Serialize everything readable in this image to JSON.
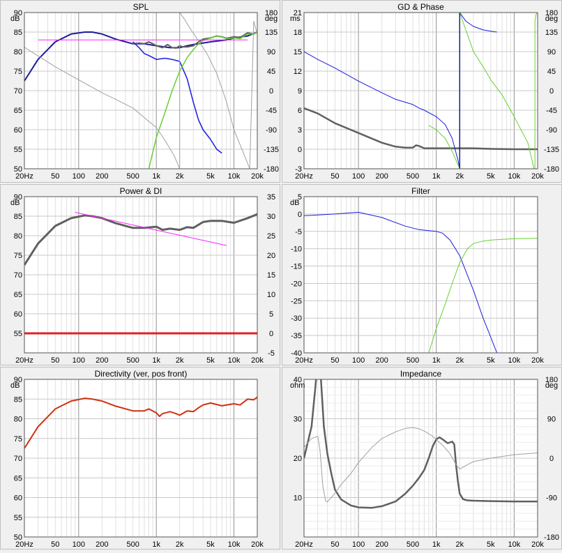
{
  "colors": {
    "background": "#f0f0f0",
    "plot_bg": "#ffffff",
    "grid": "#c8c8c8",
    "frame": "#555555",
    "blue": "#1a1ae0",
    "navy": "#1c1c9c",
    "green": "#66d030",
    "gray_dark": "#606060",
    "gray_light": "#a0a0a0",
    "magenta": "#ff20ff",
    "red": "#e02020",
    "orange_red": "#d03010"
  },
  "chart_data": [
    {
      "id": "spl",
      "type": "line",
      "title": "SPL",
      "x_scale": "log",
      "xlim": [
        20,
        20000
      ],
      "x_ticks": [
        "20Hz",
        "50",
        "100",
        "200",
        "500",
        "1k",
        "2k",
        "5k",
        "10k",
        "20k"
      ],
      "ylim": [
        50,
        90
      ],
      "y_ticks": [
        "50",
        "55",
        "60",
        "65",
        "70",
        "75",
        "80",
        "85",
        "90"
      ],
      "ylabel": "dB",
      "y2lim": [
        -180,
        180
      ],
      "y2_ticks": [
        "-180",
        "-135",
        "-90",
        "-45",
        "0",
        "45",
        "90",
        "135",
        "180"
      ],
      "y2label": "deg",
      "grid": true,
      "series": [
        {
          "color": "navy",
          "width": 2,
          "axis": "left",
          "x": [
            20,
            30,
            50,
            80,
            120,
            150,
            200,
            300,
            500,
            700,
            1000,
            1500,
            2000,
            2500,
            3000,
            5000,
            8000,
            10000,
            15000,
            20000
          ],
          "y": [
            72.5,
            78,
            82.5,
            84.5,
            85,
            85,
            84.5,
            83.2,
            82,
            82,
            81.5,
            81,
            81,
            81.5,
            81.8,
            82.5,
            83,
            83.5,
            84,
            85
          ]
        },
        {
          "color": "gray_dark",
          "width": 2,
          "axis": "left",
          "x": [
            500,
            600,
            700,
            800,
            900,
            1000,
            1200,
            1400,
            1600,
            1800,
            2000,
            2200,
            2500,
            3000,
            3500,
            4000,
            5000,
            6000,
            7000,
            8000,
            10000,
            12000,
            15000,
            18000,
            20000
          ],
          "y": [
            82,
            82.2,
            82,
            82.5,
            82,
            81.5,
            81,
            81.8,
            81,
            80.9,
            81.5,
            81.2,
            81.2,
            81.5,
            82.5,
            83.2,
            83.5,
            84,
            83.8,
            83.4,
            83.8,
            83.6,
            84.8,
            84.5,
            85
          ]
        },
        {
          "color": "blue",
          "width": 1.5,
          "axis": "left",
          "x": [
            500,
            600,
            700,
            800,
            1000,
            1300,
            1600,
            2000,
            2500,
            3000,
            3500,
            4000,
            5000,
            6000,
            7000
          ],
          "y": [
            82.5,
            81,
            79.5,
            79,
            78,
            78.3,
            78,
            77.5,
            73,
            67,
            62.5,
            60,
            57.5,
            55,
            54
          ]
        },
        {
          "color": "green",
          "width": 1.5,
          "axis": "left",
          "x": [
            800,
            1000,
            1300,
            1600,
            2000,
            2500,
            3000,
            3500,
            4000,
            5000,
            6000,
            7000,
            8000,
            10000,
            12000,
            15000,
            18000,
            20000
          ],
          "y": [
            50,
            58,
            64.5,
            70,
            75,
            78.5,
            80.5,
            82,
            82.8,
            83.5,
            84,
            83.8,
            83.3,
            83.5,
            83.3,
            84.5,
            84.5,
            85
          ]
        },
        {
          "color": "magenta",
          "width": 1,
          "axis": "left",
          "x": [
            30,
            15000
          ],
          "y": [
            83,
            83
          ]
        },
        {
          "color": "gray_light",
          "width": 1,
          "axis": "right",
          "x": [
            20,
            50,
            100,
            200,
            300,
            500,
            700,
            1000,
            1300,
            1700,
            2000,
            2000,
            2300,
            2800,
            3500,
            4500,
            6000,
            8000,
            10000,
            13000,
            16000,
            18000,
            20000
          ],
          "y": [
            100,
            55,
            25,
            -5,
            -20,
            -40,
            -62,
            -85,
            -115,
            -150,
            -180,
            180,
            165,
            140,
            115,
            85,
            40,
            -25,
            -90,
            -140,
            -180,
            160,
            130
          ]
        }
      ]
    },
    {
      "id": "gd_phase",
      "type": "line",
      "title": "GD & Phase",
      "x_scale": "log",
      "xlim": [
        20,
        20000
      ],
      "x_ticks": [
        "20Hz",
        "50",
        "100",
        "200",
        "500",
        "1k",
        "2k",
        "5k",
        "10k",
        "20k"
      ],
      "ylim": [
        -3,
        21
      ],
      "y_ticks": [
        "-3",
        "0",
        "3",
        "6",
        "9",
        "12",
        "15",
        "18",
        "21"
      ],
      "ylabel": "ms",
      "y2lim": [
        -180,
        180
      ],
      "y2_ticks": [
        "-180",
        "-135",
        "-90",
        "-45",
        "0",
        "45",
        "90",
        "135",
        "180"
      ],
      "y2label": "deg",
      "grid": true,
      "series": [
        {
          "color": "gray_dark",
          "width": 2.5,
          "axis": "left",
          "x": [
            20,
            30,
            50,
            100,
            200,
            300,
            400,
            500,
            550,
            600,
            700,
            1000,
            2000,
            3000,
            5000,
            10000,
            20000
          ],
          "y": [
            6.3,
            5.5,
            4,
            2.5,
            1,
            0.4,
            0.25,
            0.25,
            0.6,
            0.5,
            0.15,
            0.15,
            0.15,
            0.15,
            0.05,
            0,
            0
          ]
        },
        {
          "color": "blue",
          "width": 1,
          "axis": "right",
          "x": [
            20,
            30,
            50,
            100,
            200,
            300,
            500,
            600,
            700,
            1000,
            1300,
            1600,
            1900,
            2000,
            2000,
            2400,
            3000,
            4000,
            5000,
            6000
          ],
          "y": [
            90,
            72,
            52,
            22,
            -5,
            -20,
            -32,
            -40,
            -45,
            -60,
            -78,
            -110,
            -160,
            -180,
            180,
            160,
            148,
            140,
            137,
            135
          ]
        },
        {
          "color": "green",
          "width": 1,
          "axis": "right",
          "x": [
            800,
            1000,
            1300,
            1600,
            2000,
            2000,
            2500,
            3000,
            4000,
            5000,
            7000,
            10000,
            15000,
            18000,
            18500,
            18500,
            19000,
            20000
          ],
          "y": [
            -80,
            -90,
            -110,
            -140,
            -180,
            180,
            130,
            90,
            55,
            25,
            -10,
            -60,
            -120,
            -180,
            -180,
            160,
            175,
            180
          ]
        },
        {
          "color": "navy",
          "width": 1.5,
          "axis": "right",
          "x": [
            2000,
            2000
          ],
          "y": [
            -180,
            180
          ]
        }
      ]
    },
    {
      "id": "power_di",
      "type": "line",
      "title": "Power & DI",
      "x_scale": "log",
      "xlim": [
        20,
        20000
      ],
      "x_ticks": [
        "20Hz",
        "50",
        "100",
        "200",
        "500",
        "1k",
        "2k",
        "5k",
        "10k",
        "20k"
      ],
      "ylim": [
        50,
        90
      ],
      "y_ticks": [
        "55",
        "60",
        "65",
        "70",
        "75",
        "80",
        "85",
        "90"
      ],
      "ylabel": "dB",
      "y2lim": [
        -5,
        35
      ],
      "y2_ticks": [
        "-5",
        "0",
        "5",
        "10",
        "15",
        "20",
        "25",
        "30",
        "35"
      ],
      "grid": true,
      "series": [
        {
          "color": "gray_dark",
          "width": 3,
          "axis": "left",
          "x": [
            20,
            30,
            50,
            80,
            120,
            150,
            200,
            300,
            500,
            700,
            1000,
            1200,
            1500,
            2000,
            2500,
            3000,
            4000,
            5000,
            7000,
            10000,
            15000,
            20000
          ],
          "y": [
            72.5,
            78,
            82.5,
            84.5,
            85.2,
            85,
            84.5,
            83.2,
            82,
            82,
            82.3,
            81.5,
            81.8,
            81.5,
            82.2,
            82,
            83.5,
            83.8,
            83.8,
            83.3,
            84.5,
            85.5
          ]
        },
        {
          "color": "magenta",
          "width": 1,
          "axis": "left",
          "x": [
            90,
            8000
          ],
          "y": [
            86,
            77.5
          ]
        },
        {
          "color": "red",
          "width": 3,
          "axis": "right",
          "x": [
            20,
            20000
          ],
          "y": [
            0,
            0
          ]
        }
      ]
    },
    {
      "id": "filter",
      "type": "line",
      "title": "Filter",
      "x_scale": "log",
      "xlim": [
        20,
        20000
      ],
      "x_ticks": [
        "20Hz",
        "50",
        "100",
        "200",
        "500",
        "1k",
        "2k",
        "5k",
        "10k",
        "20k"
      ],
      "ylim": [
        -40,
        5
      ],
      "y_ticks": [
        "-40",
        "-35",
        "-30",
        "-25",
        "-20",
        "-15",
        "-10",
        "-5",
        "0",
        "5"
      ],
      "ylabel": "dB",
      "grid": true,
      "series": [
        {
          "color": "blue",
          "width": 1,
          "axis": "left",
          "x": [
            20,
            50,
            100,
            200,
            400,
            600,
            800,
            1000,
            1200,
            1500,
            2000,
            3000,
            4000,
            5000,
            6000
          ],
          "y": [
            -0.5,
            0,
            0.5,
            -1,
            -3.5,
            -4.5,
            -4.8,
            -5,
            -5.5,
            -7.5,
            -12,
            -22,
            -30,
            -35.5,
            -40
          ]
        },
        {
          "color": "green",
          "width": 1,
          "axis": "left",
          "x": [
            800,
            1000,
            1300,
            1600,
            2000,
            2500,
            3000,
            4000,
            5000,
            7000,
            10000,
            20000
          ],
          "y": [
            -40,
            -33,
            -26,
            -20,
            -14,
            -10,
            -8.5,
            -7.8,
            -7.5,
            -7.3,
            -7.1,
            -7
          ]
        }
      ]
    },
    {
      "id": "directivity",
      "type": "line",
      "title": "Directivity (ver, pos front)",
      "x_scale": "log",
      "xlim": [
        20,
        20000
      ],
      "x_ticks": [
        "20Hz",
        "50",
        "100",
        "200",
        "500",
        "1k",
        "2k",
        "5k",
        "10k",
        "20k"
      ],
      "ylim": [
        50,
        90
      ],
      "y_ticks": [
        "50",
        "55",
        "60",
        "65",
        "70",
        "75",
        "80",
        "85",
        "90"
      ],
      "ylabel": "dB",
      "grid": true,
      "series": [
        {
          "color": "orange_red",
          "width": 2,
          "axis": "left",
          "x": [
            20,
            30,
            50,
            80,
            120,
            150,
            200,
            300,
            500,
            700,
            800,
            1000,
            1100,
            1200,
            1500,
            1800,
            2000,
            2500,
            3000,
            3500,
            4000,
            5000,
            7000,
            10000,
            12000,
            15000,
            18000,
            20000
          ],
          "y": [
            72.5,
            78,
            82.5,
            84.5,
            85.2,
            85,
            84.5,
            83.2,
            82,
            82,
            82.5,
            81.5,
            80.6,
            81.3,
            81.8,
            81.3,
            80.9,
            82,
            81.8,
            82.8,
            83.5,
            84,
            83.3,
            83.8,
            83.5,
            85,
            84.8,
            85.5
          ]
        }
      ]
    },
    {
      "id": "impedance",
      "type": "line",
      "title": "Impedance",
      "x_scale": "log",
      "xlim": [
        20,
        20000
      ],
      "x_ticks": [
        "20Hz",
        "50",
        "100",
        "200",
        "500",
        "1k",
        "2k",
        "5k",
        "10k",
        "20k"
      ],
      "ylim": [
        0,
        40
      ],
      "y_ticks": [
        "10",
        "20",
        "30",
        "40"
      ],
      "ylabel": "ohm",
      "y2lim": [
        -180,
        180
      ],
      "y2_ticks": [
        "-180",
        "-90",
        "0",
        "90",
        "180"
      ],
      "y2label": "deg",
      "grid": true,
      "series": [
        {
          "color": "gray_dark",
          "width": 2.5,
          "axis": "left",
          "x": [
            20,
            25,
            28,
            30,
            31,
            33,
            36,
            40,
            45,
            50,
            60,
            80,
            100,
            150,
            200,
            300,
            400,
            500,
            600,
            700,
            800,
            900,
            1000,
            1100,
            1200,
            1400,
            1600,
            1700,
            1800,
            1900,
            2000,
            2200,
            2500,
            3000,
            5000,
            10000,
            20000
          ],
          "y": [
            20,
            28,
            38,
            45,
            45,
            40,
            28,
            21,
            16,
            12,
            9.5,
            8,
            7.5,
            7.4,
            7.8,
            9,
            11,
            13,
            15,
            17,
            20,
            23,
            24.8,
            25.3,
            24.8,
            23.8,
            24.2,
            23.5,
            18,
            14,
            11,
            9.6,
            9.3,
            9.2,
            9.1,
            9,
            9
          ]
        },
        {
          "color": "gray_light",
          "width": 1,
          "axis": "right",
          "x": [
            20,
            25,
            30,
            32,
            35,
            38,
            40,
            42,
            45,
            50,
            60,
            80,
            100,
            150,
            200,
            300,
            400,
            500,
            600,
            700,
            900,
            1000,
            1200,
            1500,
            1800,
            2000,
            2500,
            3000,
            5000,
            10000,
            20000
          ],
          "y": [
            25,
            45,
            50,
            20,
            -65,
            -98,
            -100,
            -95,
            -90,
            -80,
            -60,
            -35,
            -10,
            25,
            45,
            60,
            68,
            70,
            67,
            62,
            50,
            42,
            30,
            10,
            -15,
            -25,
            -15,
            -8,
            0,
            8,
            12
          ]
        }
      ]
    }
  ]
}
